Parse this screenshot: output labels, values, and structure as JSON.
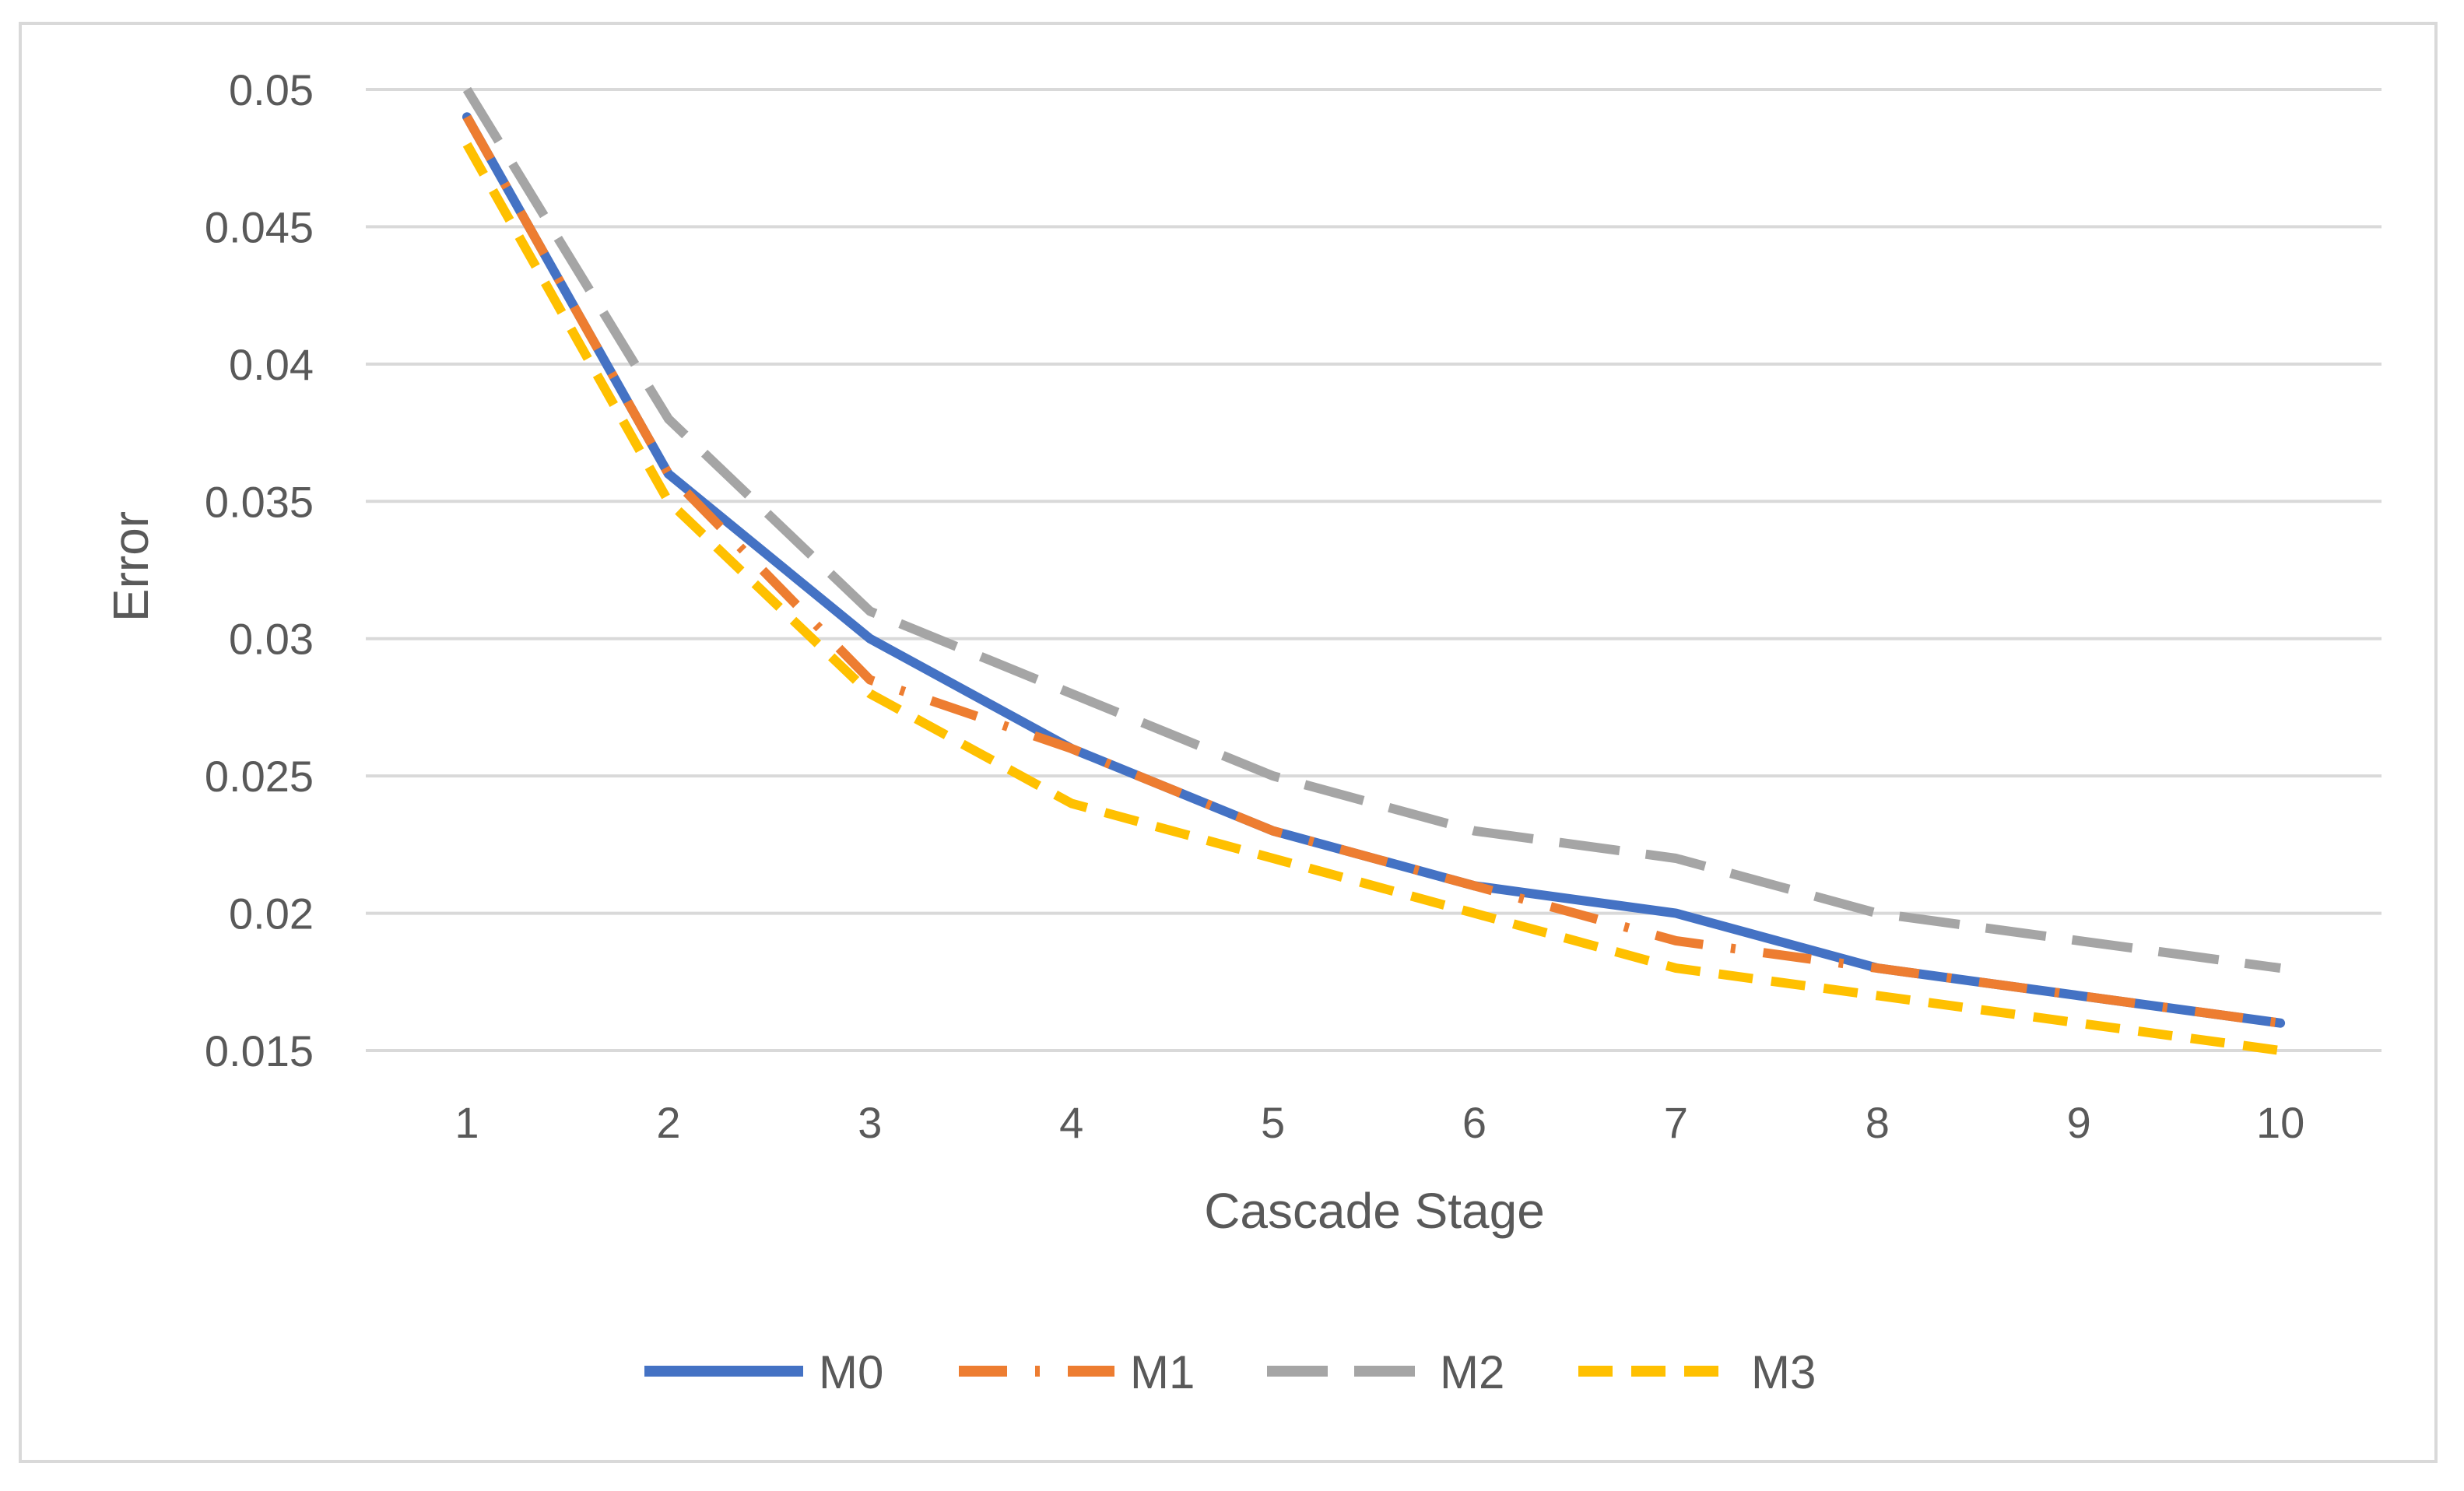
{
  "chart_data": {
    "type": "line",
    "title": "",
    "xlabel": "Cascade Stage",
    "ylabel": "Error",
    "categories": [
      "1",
      "2",
      "3",
      "4",
      "5",
      "6",
      "7",
      "8",
      "9",
      "10"
    ],
    "ylim": [
      0.015,
      0.05
    ],
    "yticks": [
      "0.015",
      "0.02",
      "0.025",
      "0.03",
      "0.035",
      "0.04",
      "0.045",
      "0.05"
    ],
    "grid": true,
    "legend_position": "bottom",
    "series": [
      {
        "name": "M0",
        "color": "#4472C4",
        "style": "solid",
        "values": [
          0.049,
          0.036,
          0.03,
          0.026,
          0.023,
          0.021,
          0.02,
          0.018,
          0.017,
          0.016
        ]
      },
      {
        "name": "M1",
        "color": "#ED7D31",
        "style": "dash-dot",
        "values": [
          0.049,
          0.036,
          0.0285,
          0.026,
          0.023,
          0.021,
          0.019,
          0.018,
          0.017,
          0.016
        ]
      },
      {
        "name": "M2",
        "color": "#A5A5A5",
        "style": "long-dash",
        "values": [
          0.05,
          0.038,
          0.031,
          0.028,
          0.025,
          0.023,
          0.022,
          0.02,
          0.019,
          0.018
        ]
      },
      {
        "name": "M3",
        "color": "#FFC000",
        "style": "dash",
        "values": [
          0.048,
          0.035,
          0.028,
          0.024,
          0.022,
          0.02,
          0.018,
          0.017,
          0.016,
          0.015
        ]
      }
    ]
  }
}
